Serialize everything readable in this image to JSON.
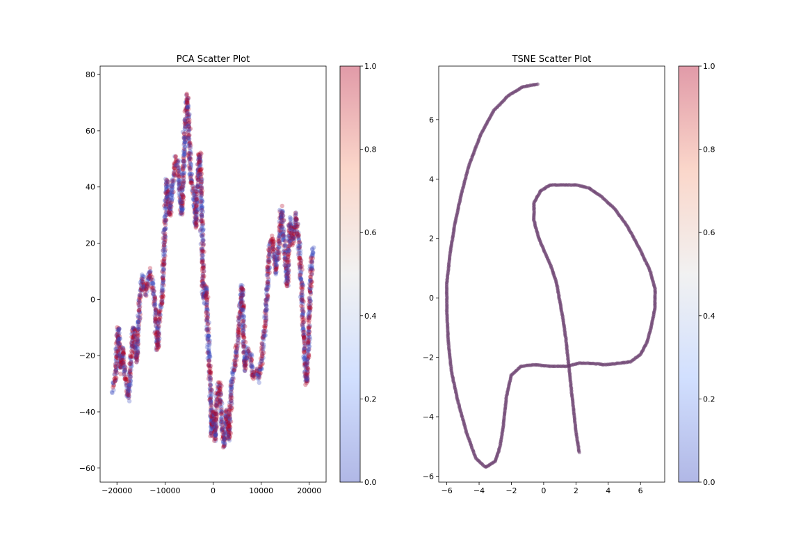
{
  "chart_data": [
    {
      "type": "scatter",
      "title": "PCA Scatter Plot",
      "xlabel": "",
      "ylabel": "",
      "xlim": [
        -23500,
        23500
      ],
      "ylim": [
        -65,
        83
      ],
      "xticks": [
        -20000,
        -10000,
        0,
        10000,
        20000
      ],
      "xtick_labels": [
        "−20000",
        "−10000",
        "0",
        "10000",
        "20000"
      ],
      "yticks": [
        -60,
        -40,
        -20,
        0,
        20,
        40,
        60,
        80
      ],
      "ytick_labels": [
        "−60",
        "−40",
        "−20",
        "0",
        "20",
        "40",
        "60",
        "80"
      ],
      "colormap": "coolwarm",
      "alpha": 0.3,
      "point_colors": [
        "#3b4cc0",
        "#b40426"
      ],
      "trace_x": [
        -21000,
        -20300,
        -19700,
        -19300,
        -18800,
        -18200,
        -17600,
        -17000,
        -16600,
        -16000,
        -15300,
        -14700,
        -14000,
        -13200,
        -12600,
        -12000,
        -11600,
        -11100,
        -10600,
        -10100,
        -9600,
        -9100,
        -8600,
        -8100,
        -7600,
        -7100,
        -6500,
        -5900,
        -5400,
        -5100,
        -4800,
        -4400,
        -4000,
        -3600,
        -3200,
        -2800,
        -2400,
        -2000,
        -1500,
        -1000,
        -600,
        -300,
        0,
        400,
        800,
        1300,
        1800,
        2300,
        2800,
        3300,
        3800,
        4300,
        4800,
        5400,
        6000,
        6600,
        7200,
        7800,
        8400,
        9000,
        9600,
        10200,
        10800,
        11300,
        11800,
        12400,
        13000,
        13600,
        14200,
        14800,
        15400,
        16000,
        16600,
        17200,
        17800,
        18400,
        19000,
        19500,
        20000,
        20500,
        20900
      ],
      "trace_y": [
        -32,
        -28,
        -10,
        -25,
        -18,
        -28,
        -35,
        -20,
        -10,
        -22,
        0,
        8,
        2,
        10,
        5,
        -3,
        -18,
        -5,
        0,
        22,
        42,
        30,
        38,
        46,
        50,
        44,
        30,
        60,
        72,
        62,
        48,
        40,
        38,
        26,
        44,
        52,
        35,
        0,
        5,
        -15,
        -30,
        -48,
        -40,
        -50,
        -35,
        -30,
        -45,
        -52,
        -40,
        -50,
        -30,
        -25,
        -20,
        -10,
        5,
        -25,
        -18,
        -20,
        -28,
        -25,
        -28,
        -20,
        -10,
        5,
        20,
        22,
        10,
        18,
        32,
        20,
        5,
        28,
        20,
        30,
        22,
        5,
        -20,
        -30,
        -5,
        15,
        18
      ],
      "colorbar": {
        "ticks": [
          0.0,
          0.2,
          0.4,
          0.6,
          0.8,
          1.0
        ],
        "tick_labels": [
          "0.0",
          "0.2",
          "0.4",
          "0.6",
          "0.8",
          "1.0"
        ]
      }
    },
    {
      "type": "scatter",
      "title": "TSNE Scatter Plot",
      "xlabel": "",
      "ylabel": "",
      "xlim": [
        -6.5,
        7.5
      ],
      "ylim": [
        -6.2,
        7.8
      ],
      "xticks": [
        -6,
        -4,
        -2,
        0,
        2,
        4,
        6
      ],
      "xtick_labels": [
        "−6",
        "−4",
        "−2",
        "0",
        "2",
        "4",
        "6"
      ],
      "yticks": [
        -6,
        -4,
        -2,
        0,
        2,
        4,
        6
      ],
      "ytick_labels": [
        "−6",
        "−4",
        "−2",
        "0",
        "2",
        "4",
        "6"
      ],
      "colormap": "coolwarm",
      "alpha": 0.3,
      "point_color": "#6a3d6e",
      "trace_x": [
        2.2,
        2.0,
        1.8,
        1.6,
        1.4,
        1.2,
        1.0,
        0.8,
        0.5,
        0.1,
        -0.3,
        -0.6,
        -0.6,
        -0.2,
        0.4,
        1.2,
        2.0,
        2.8,
        3.6,
        4.4,
        5.2,
        6.0,
        6.6,
        6.9,
        6.9,
        6.7,
        6.4,
        6.0,
        5.4,
        4.6,
        3.8,
        3.0,
        2.2,
        1.4,
        0.4,
        -0.6,
        -1.4,
        -2.0,
        -2.3,
        -2.5,
        -2.7,
        -3.0,
        -3.6,
        -4.2,
        -4.8,
        -5.3,
        -5.7,
        -5.9,
        -6.0,
        -6.0,
        -5.8,
        -5.5,
        -5.1,
        -4.6,
        -3.9,
        -3.1,
        -2.2,
        -1.3,
        -0.3
      ],
      "trace_y": [
        -5.2,
        -4.5,
        -3.5,
        -2.5,
        -1.5,
        -0.7,
        -0.1,
        0.5,
        1.0,
        1.5,
        2.0,
        2.6,
        3.2,
        3.6,
        3.8,
        3.8,
        3.8,
        3.7,
        3.4,
        3.0,
        2.4,
        1.6,
        0.9,
        0.3,
        -0.3,
        -0.9,
        -1.5,
        -1.9,
        -2.15,
        -2.2,
        -2.25,
        -2.2,
        -2.2,
        -2.3,
        -2.3,
        -2.25,
        -2.3,
        -2.6,
        -3.3,
        -4.3,
        -5.0,
        -5.5,
        -5.7,
        -5.4,
        -4.5,
        -3.5,
        -2.5,
        -1.5,
        -0.5,
        0.5,
        1.5,
        2.5,
        3.5,
        4.5,
        5.5,
        6.3,
        6.8,
        7.1,
        7.2
      ],
      "colorbar": {
        "ticks": [
          0.0,
          0.2,
          0.4,
          0.6,
          0.8,
          1.0
        ],
        "tick_labels": [
          "0.0",
          "0.2",
          "0.4",
          "0.6",
          "0.8",
          "1.0"
        ]
      }
    }
  ]
}
